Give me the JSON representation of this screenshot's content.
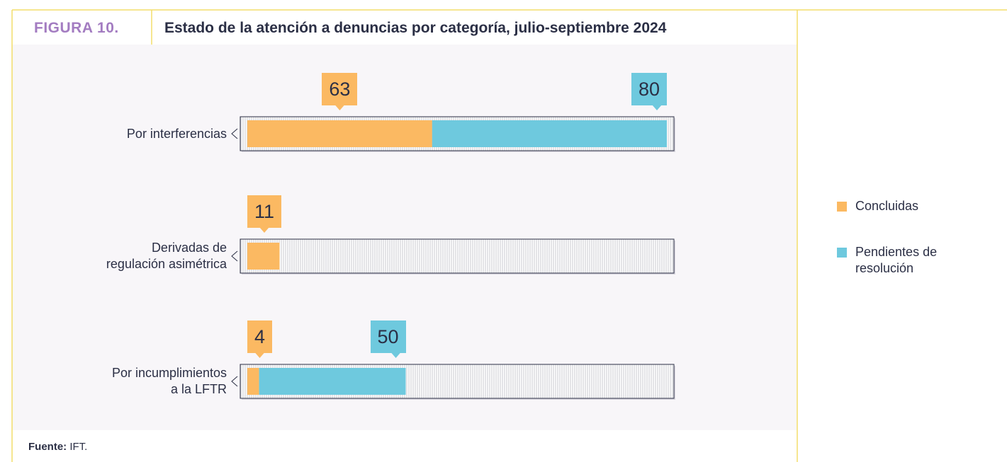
{
  "chart_data": {
    "type": "stacked-barh",
    "figure_label": "FIGURA 10.",
    "title": "Estado de la atención a denuncias por categoría, julio-septiembre 2024",
    "categories": [
      "Por interferencias",
      "Derivadas de\nregulación asimétrica",
      "Por incumplimientos\na la LFTR"
    ],
    "series": [
      {
        "name": "Concluidas",
        "color": "#fbb962",
        "values": [
          63,
          11,
          4
        ]
      },
      {
        "name": "Pendientes de\nresolución",
        "color": "#6ec9de",
        "values": [
          80,
          null,
          50
        ]
      }
    ],
    "xlim": [
      0,
      143
    ],
    "source_label": "Fuente:",
    "source": "IFT."
  }
}
